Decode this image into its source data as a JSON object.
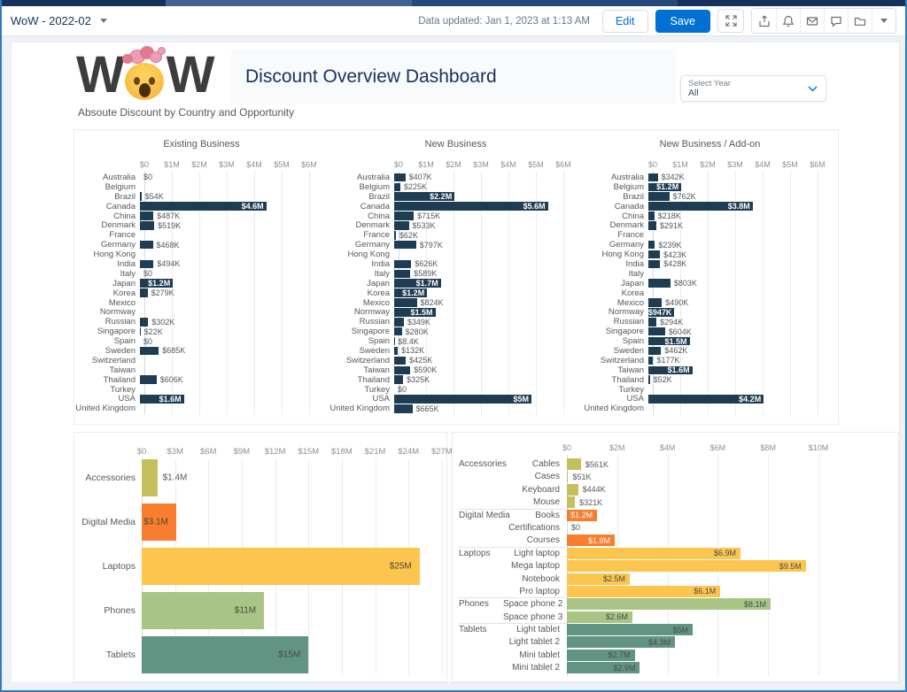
{
  "topbar": {
    "dashboard_name": "WoW - 2022-02",
    "data_updated": "Data updated: Jan 1, 2023 at 1:13 AM",
    "edit_label": "Edit",
    "save_label": "Save",
    "accent_color": "#0070d2"
  },
  "header": {
    "logo_left": "W",
    "logo_right": "W",
    "title": "Discount Overview Dashboard",
    "year_filter": {
      "label": "Select Year",
      "value": "All"
    }
  },
  "section_title": "Absoute Discount by Country and Opportunity",
  "chart_data": [
    {
      "type": "bar",
      "orientation": "horizontal",
      "title": "Existing Business",
      "x_ticks": [
        "$0",
        "$1M",
        "$2M",
        "$3M",
        "$4M",
        "$5M",
        "$6M"
      ],
      "xlim_millions": [
        0,
        6.6
      ],
      "bar_color": "#1e3d52",
      "categories": [
        "Australia",
        "Belgium",
        "Brazil",
        "Canada",
        "China",
        "Denmark",
        "France",
        "Germany",
        "Hong Kong",
        "India",
        "Italy",
        "Japan",
        "Korea",
        "Mexico",
        "Normway",
        "Russian",
        "Singapore",
        "Spain",
        "Sweden",
        "Switzerland",
        "Taiwan",
        "Thailand",
        "Turkey",
        "USA",
        "United Kingdom"
      ],
      "values": [
        0,
        null,
        0.054,
        4.6,
        0.487,
        0.519,
        null,
        0.468,
        null,
        0.494,
        0,
        1.2,
        0.279,
        null,
        null,
        0.302,
        0.022,
        0,
        0.685,
        null,
        null,
        0.606,
        null,
        1.6,
        null
      ],
      "labels": [
        "$0",
        "",
        "$54K",
        "$4.6M",
        "$487K",
        "$519K",
        "",
        "$468K",
        "",
        "$494K",
        "$0",
        "$1.2M",
        "$279K",
        "",
        "",
        "$302K",
        "$22K",
        "$0",
        "$685K",
        "",
        "",
        "$606K",
        "",
        "$1.6M",
        ""
      ],
      "label_inside": [
        false,
        false,
        false,
        true,
        false,
        false,
        false,
        false,
        false,
        false,
        false,
        true,
        false,
        false,
        false,
        false,
        false,
        false,
        false,
        false,
        false,
        false,
        false,
        true,
        false
      ]
    },
    {
      "type": "bar",
      "orientation": "horizontal",
      "title": "New Business",
      "x_ticks": [
        "$0",
        "$1M",
        "$2M",
        "$3M",
        "$4M",
        "$5M",
        "$6M"
      ],
      "xlim_millions": [
        0,
        6.6
      ],
      "bar_color": "#1e3d52",
      "categories": [
        "Australia",
        "Belgium",
        "Brazil",
        "Canada",
        "China",
        "Denmark",
        "France",
        "Germany",
        "Hong Kong",
        "India",
        "Italy",
        "Japan",
        "Korea",
        "Mexico",
        "Normway",
        "Russian",
        "Singapore",
        "Spain",
        "Sweden",
        "Switzerland",
        "Taiwan",
        "Thailand",
        "Turkey",
        "USA",
        "United Kingdom"
      ],
      "values": [
        0.407,
        0.225,
        2.2,
        5.6,
        0.715,
        0.533,
        0.062,
        0.797,
        null,
        0.626,
        0.589,
        1.7,
        1.2,
        0.824,
        1.5,
        0.349,
        0.28,
        0.0084,
        0.132,
        0.425,
        0.59,
        0.325,
        0,
        5.0,
        0.665
      ],
      "labels": [
        "$407K",
        "$225K",
        "$2.2M",
        "$5.6M",
        "$715K",
        "$533K",
        "$62K",
        "$797K",
        "",
        "$626K",
        "$589K",
        "$1.7M",
        "$1.2M",
        "$824K",
        "$1.5M",
        "$349K",
        "$280K",
        "$8.4K",
        "$132K",
        "$425K",
        "$590K",
        "$325K",
        "$0",
        "$5M",
        "$665K"
      ],
      "label_inside": [
        false,
        false,
        true,
        true,
        false,
        false,
        false,
        false,
        false,
        false,
        false,
        true,
        true,
        false,
        true,
        false,
        false,
        false,
        false,
        false,
        false,
        false,
        false,
        true,
        false
      ]
    },
    {
      "type": "bar",
      "orientation": "horizontal",
      "title": "New Business / Add-on",
      "x_ticks": [
        "$0",
        "$1M",
        "$2M",
        "$3M",
        "$4M",
        "$5M",
        "$6M"
      ],
      "xlim_millions": [
        0,
        6.6
      ],
      "bar_color": "#1e3d52",
      "categories": [
        "Australia",
        "Belgium",
        "Brazil",
        "Canada",
        "China",
        "Denmark",
        "France",
        "Germany",
        "Hong Kong",
        "India",
        "Italy",
        "Japan",
        "Korea",
        "Mexico",
        "Normway",
        "Russian",
        "Singapore",
        "Spain",
        "Sweden",
        "Switzerland",
        "Taiwan",
        "Thailand",
        "Turkey",
        "USA",
        "United Kingdom"
      ],
      "values": [
        0.342,
        1.2,
        0.762,
        3.8,
        0.218,
        0.291,
        null,
        0.239,
        0.423,
        0.428,
        null,
        0.803,
        null,
        0.49,
        0.947,
        0.294,
        0.604,
        1.5,
        0.462,
        0.177,
        1.6,
        0.052,
        null,
        4.2,
        null
      ],
      "labels": [
        "$342K",
        "$1.2M",
        "$762K",
        "$3.8M",
        "$218K",
        "$291K",
        "",
        "$239K",
        "$423K",
        "$428K",
        "",
        "$803K",
        "",
        "$490K",
        "$947K",
        "$294K",
        "$604K",
        "$1.5M",
        "$462K",
        "$177K",
        "$1.6M",
        "$52K",
        "",
        "$4.2M",
        ""
      ],
      "label_inside": [
        false,
        true,
        false,
        true,
        false,
        false,
        false,
        false,
        false,
        false,
        false,
        false,
        false,
        false,
        true,
        false,
        false,
        true,
        false,
        false,
        true,
        false,
        false,
        true,
        false
      ]
    },
    {
      "type": "bar",
      "orientation": "horizontal",
      "title": "",
      "x_ticks": [
        "$0",
        "$3M",
        "$6M",
        "$9M",
        "$12M",
        "$15M",
        "$18M",
        "$21M",
        "$24M",
        "$27M"
      ],
      "xlim_millions": [
        0,
        27.2
      ],
      "categories": [
        "Accessories",
        "Digital Media",
        "Laptops",
        "Phones",
        "Tablets"
      ],
      "values": [
        1.4,
        3.1,
        25,
        11,
        15
      ],
      "labels": [
        "$1.4M",
        "$3.1M",
        "$25M",
        "$11M",
        "$15M"
      ],
      "label_inside": [
        false,
        true,
        true,
        true,
        true
      ],
      "colors": [
        "#c5bf5e",
        "#f87d2e",
        "#fcc54d",
        "#a8c585",
        "#619483"
      ]
    },
    {
      "type": "bar",
      "orientation": "horizontal",
      "title": "",
      "x_ticks": [
        "$0",
        "$2M",
        "$4M",
        "$6M",
        "$8M",
        "$10M"
      ],
      "xlim_millions": [
        0,
        10
      ],
      "groups": [
        {
          "name": "Accessories",
          "color": "#c5bf5e",
          "items": [
            {
              "label": "Cables",
              "value": 0.561,
              "text": "$561K",
              "inside": false
            },
            {
              "label": "Cases",
              "value": 0.051,
              "text": "$51K",
              "inside": false
            },
            {
              "label": "Keyboard",
              "value": 0.444,
              "text": "$444K",
              "inside": false
            },
            {
              "label": "Mouse",
              "value": 0.321,
              "text": "$321K",
              "inside": false
            }
          ]
        },
        {
          "name": "Digital Media",
          "color": "#f87d2e",
          "white_inside_text": true,
          "items": [
            {
              "label": "Books",
              "value": 1.2,
              "text": "$1.2M",
              "inside": true
            },
            {
              "label": "Certifications",
              "value": 0,
              "text": "$0",
              "inside": false
            },
            {
              "label": "Courses",
              "value": 1.9,
              "text": "$1.9M",
              "inside": true
            }
          ]
        },
        {
          "name": "Laptops",
          "color": "#fcc54d",
          "items": [
            {
              "label": "Light laptop",
              "value": 6.9,
              "text": "$6.9M",
              "inside": true
            },
            {
              "label": "Mega laptop",
              "value": 9.5,
              "text": "$9.5M",
              "inside": true
            },
            {
              "label": "Notebook",
              "value": 2.5,
              "text": "$2.5M",
              "inside": true
            },
            {
              "label": "Pro laptop",
              "value": 6.1,
              "text": "$6.1M",
              "inside": true
            }
          ]
        },
        {
          "name": "Phones",
          "color": "#a8c585",
          "items": [
            {
              "label": "Space phone 2",
              "value": 8.1,
              "text": "$8.1M",
              "inside": true
            },
            {
              "label": "Space phone 3",
              "value": 2.6,
              "text": "$2.6M",
              "inside": true
            }
          ]
        },
        {
          "name": "Tablets",
          "color": "#619483",
          "items": [
            {
              "label": "Light tablet",
              "value": 5.0,
              "text": "$5M",
              "inside": true
            },
            {
              "label": "Light tablet 2",
              "value": 4.3,
              "text": "$4.3M",
              "inside": true
            },
            {
              "label": "Mini tablet",
              "value": 2.7,
              "text": "$2.7M",
              "inside": true
            },
            {
              "label": "Mini tablet 2",
              "value": 2.9,
              "text": "$2.9M",
              "inside": true
            }
          ]
        }
      ]
    }
  ]
}
